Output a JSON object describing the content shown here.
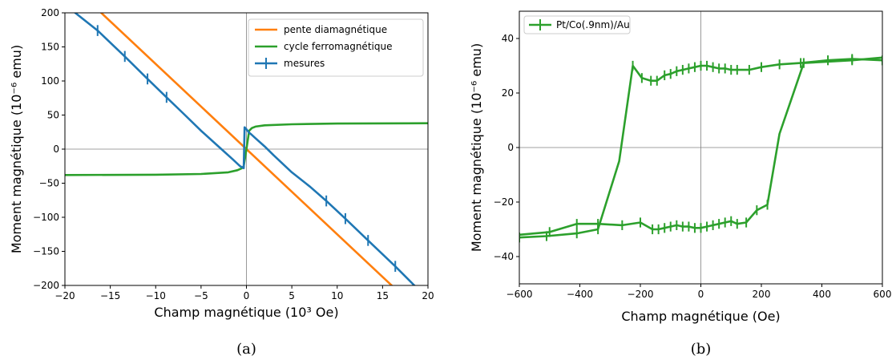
{
  "figure": {
    "caption_a": "(a)",
    "caption_b": "(b)"
  },
  "chart_data": [
    {
      "id": "a",
      "type": "line",
      "title": "",
      "xlabel": "Champ magnétique (10³ Oe)",
      "ylabel": "Moment magnétique (10⁻⁶ emu)",
      "xlim": [
        -20,
        20
      ],
      "ylim": [
        -200,
        200
      ],
      "xticks": [
        -20,
        -15,
        -10,
        -5,
        0,
        5,
        10,
        15,
        20
      ],
      "yticks": [
        -200,
        -150,
        -100,
        -50,
        0,
        50,
        100,
        150,
        200
      ],
      "reference_lines": {
        "x": 0,
        "y": 0
      },
      "legend_position": "top-right",
      "series": [
        {
          "name": "pente diamagnétique",
          "color": "#ff7f0e",
          "x": [
            -20,
            20
          ],
          "y": [
            250,
            -250
          ]
        },
        {
          "name": "cycle ferromagnétique",
          "color": "#2ca02c",
          "x": [
            -20,
            -10,
            -5,
            -2,
            -1,
            -0.5,
            -0.3,
            0,
            0.3,
            0.6,
            1,
            2,
            5,
            10,
            20
          ],
          "y": [
            -38,
            -37.5,
            -36.5,
            -34,
            -31,
            -28,
            -25,
            0,
            27,
            31,
            33,
            35,
            36.5,
            37.5,
            38
          ]
        },
        {
          "name": "mesures",
          "color": "#1f77b4",
          "x": [
            -20,
            -16.4,
            -13.4,
            -10.9,
            -8.8,
            -7,
            -5,
            -3,
            -1.5,
            -0.7,
            -0.3,
            -0.2,
            0,
            0.3,
            0.5,
            1,
            2,
            3,
            5,
            7,
            8.8,
            10.9,
            13.4,
            16.4,
            18.5,
            20
          ],
          "y": [
            212,
            174,
            136,
            103,
            76,
            53,
            27,
            3,
            -15,
            -25,
            -28,
            32,
            29,
            24,
            22,
            16,
            4,
            -9,
            -34,
            -55,
            -76,
            -102,
            -134,
            -172,
            -200,
            -219
          ],
          "error_bar_x": [
            -16.4,
            -13.4,
            -10.9,
            -8.8,
            8.8,
            10.9,
            13.4,
            16.4
          ],
          "error_bar_y": [
            174,
            136,
            103,
            76,
            -76,
            -102,
            -134,
            -172
          ],
          "error_bar_half": 8
        }
      ]
    },
    {
      "id": "b",
      "type": "line",
      "title": "",
      "xlabel": "Champ magnétique (Oe)",
      "ylabel": "Moment magnétique (10⁻⁶ emu)",
      "xlim": [
        -600,
        600
      ],
      "ylim": [
        -50,
        50
      ],
      "xticks": [
        -600,
        -400,
        -200,
        0,
        200,
        400,
        600
      ],
      "yticks": [
        -40,
        -20,
        0,
        20,
        40
      ],
      "reference_lines": {
        "x": 0,
        "y": 0
      },
      "legend_position": "top-left",
      "series": [
        {
          "name": "Pt/Co(.9nm)/Au",
          "color": "#2ca02c",
          "branches": [
            {
              "x": [
                -600,
                -510,
                -410,
                -340,
                -270,
                -225,
                -195,
                -165,
                -145,
                -120,
                -100,
                -80,
                -60,
                -40,
                -20,
                0,
                20,
                40,
                60,
                80,
                100,
                120,
                160,
                200,
                260,
                330,
                420,
                500,
                600
              ],
              "y": [
                -33,
                -32.5,
                -31.5,
                -30,
                -5,
                30,
                25.5,
                24.5,
                24.5,
                26.5,
                27,
                28,
                28.5,
                29,
                29.5,
                30,
                30,
                29.5,
                29,
                29,
                28.5,
                28.5,
                28.5,
                29.5,
                30.5,
                31,
                32,
                32.5,
                32
              ]
            },
            {
              "x": [
                600,
                500,
                340,
                260,
                220,
                185,
                150,
                120,
                100,
                80,
                60,
                40,
                20,
                0,
                -20,
                -40,
                -60,
                -80,
                -100,
                -120,
                -140,
                -160,
                -200,
                -260,
                -340,
                -410,
                -500,
                -600
              ],
              "y": [
                33,
                32,
                31,
                5,
                -21,
                -23,
                -27.5,
                -28,
                -27,
                -27.5,
                -28,
                -28.5,
                -29,
                -29.5,
                -29.5,
                -29,
                -29,
                -28.5,
                -29,
                -29.5,
                -30,
                -30,
                -27.5,
                -28.5,
                -28,
                -28,
                -31,
                -32
              ]
            }
          ],
          "error_bar_x": [
            -600,
            -510,
            -410,
            -340,
            -225,
            -195,
            -165,
            -145,
            -120,
            -100,
            -80,
            -60,
            -40,
            -20,
            0,
            20,
            40,
            60,
            80,
            100,
            120,
            160,
            200,
            260,
            330,
            420,
            500,
            600,
            500,
            340,
            220,
            185,
            150,
            120,
            100,
            80,
            60,
            40,
            20,
            0,
            -20,
            -40,
            -60,
            -80,
            -100,
            -120,
            -140,
            -160,
            -200,
            -260,
            -340,
            -410,
            -500
          ],
          "error_bar_y": [
            -33,
            -32.5,
            -31.5,
            -30,
            30,
            25.5,
            24.5,
            24.5,
            26.5,
            27,
            28,
            28.5,
            29,
            29.5,
            30,
            30,
            29.5,
            29,
            29,
            28.5,
            28.5,
            28.5,
            29.5,
            30.5,
            31,
            32,
            32.5,
            32,
            32,
            31,
            -21,
            -23,
            -27.5,
            -28,
            -27,
            -27.5,
            -28,
            -28.5,
            -29,
            -29.5,
            -29.5,
            -29,
            -29,
            -28.5,
            -29,
            -29.5,
            -30,
            -30,
            -27.5,
            -28.5,
            -28,
            -28,
            -31
          ],
          "error_bar_half": 1.8
        }
      ]
    }
  ]
}
